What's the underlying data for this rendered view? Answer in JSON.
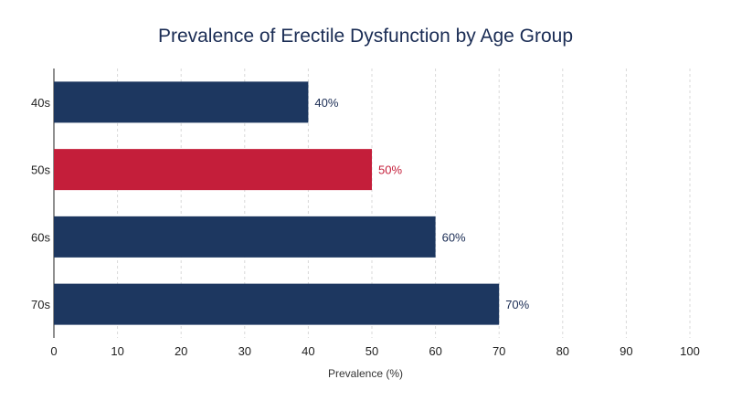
{
  "chart_data": {
    "type": "bar",
    "orientation": "horizontal",
    "title": "Prevalence of Erectile Dysfunction by Age Group",
    "xlabel": "Prevalence (%)",
    "ylabel": "",
    "categories": [
      "40s",
      "50s",
      "60s",
      "70s"
    ],
    "values": [
      40,
      50,
      60,
      70
    ],
    "value_labels": [
      "40%",
      "50%",
      "60%",
      "70%"
    ],
    "highlight_index": 1,
    "xlim": [
      0,
      100
    ],
    "xticks": [
      0,
      10,
      20,
      30,
      40,
      50,
      60,
      70,
      80,
      90,
      100
    ],
    "grid": "vertical dashed",
    "colors": {
      "bar": "#1d3760",
      "highlight": "#c41e3a",
      "label": "#1a2c54",
      "highlight_label": "#c41e3a",
      "grid": "#d9d9d9"
    }
  }
}
